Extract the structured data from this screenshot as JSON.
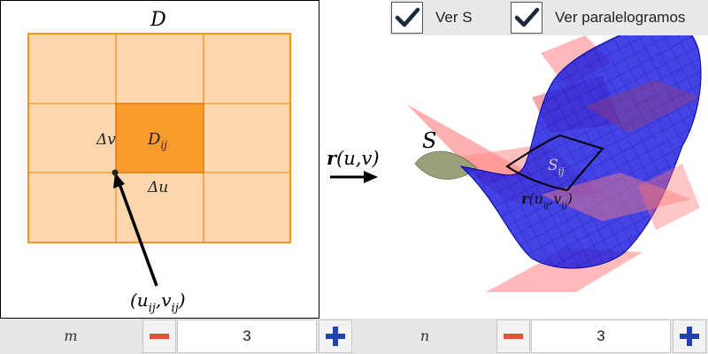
{
  "domain_labels": {
    "D": "D",
    "D_ij_main": "D",
    "D_ij_sub": "ij",
    "delta_u": "Δu",
    "delta_v": "Δv",
    "point_label": "(u",
    "point_sub1": "ij",
    "point_mid": ",v",
    "point_sub2": "ij",
    "point_close": ")"
  },
  "mapping": {
    "r_bold": "r",
    "args": "(u,v)"
  },
  "surface_labels": {
    "S": "S",
    "S_ij_main": "S",
    "S_ij_sub": "ij",
    "r_ij_bold": "r",
    "r_ij_rest": "(u",
    "r_ij_sub1": "ij",
    "r_ij_mid": ",v",
    "r_ij_sub2": "ij",
    "r_ij_close": ")"
  },
  "checkboxes": [
    {
      "label": "Ver S",
      "checked": true
    },
    {
      "label": "Ver paralelogramos",
      "checked": true
    }
  ],
  "controls": {
    "m": {
      "label": "m",
      "value": "3"
    },
    "n": {
      "label": "n",
      "value": "3"
    }
  },
  "colors": {
    "grid_fill": "#fcd6ad",
    "grid_line": "#f7931e",
    "highlight": "#f7931e",
    "surface": "#1a1ae0",
    "surface_side": "#9aa07a",
    "parallelogram": "#ff8080",
    "minus": "#e0533a",
    "plus": "#2244aa"
  }
}
